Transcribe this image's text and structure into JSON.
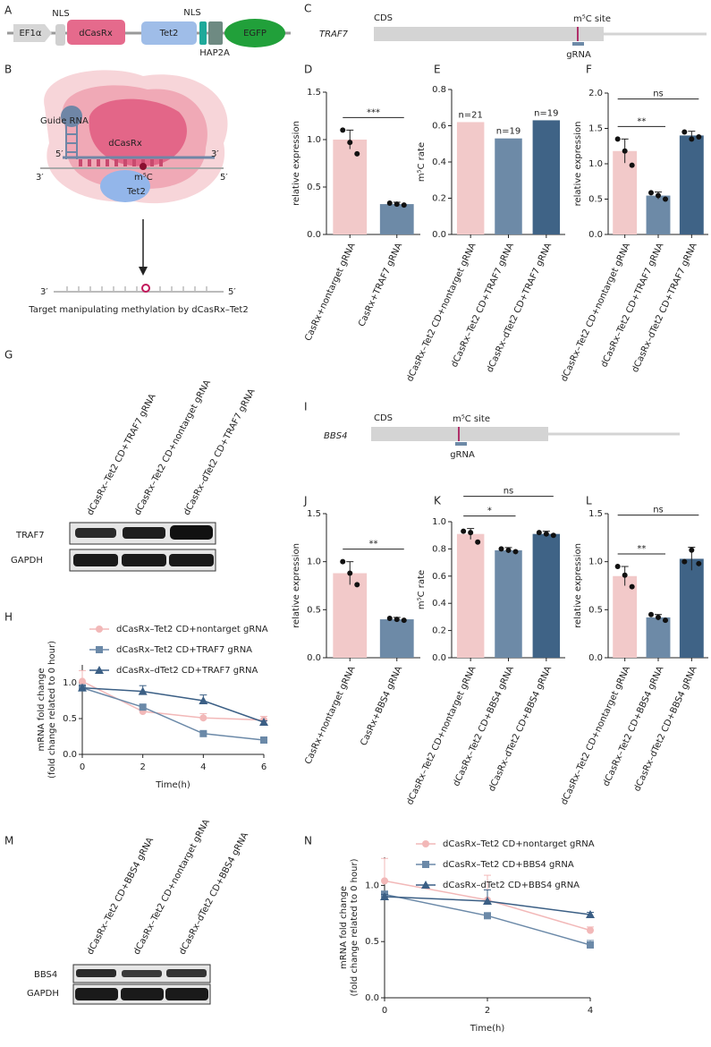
{
  "panel_labels": [
    "A",
    "B",
    "C",
    "D",
    "E",
    "F",
    "G",
    "H",
    "I",
    "J",
    "K",
    "L",
    "M",
    "N"
  ],
  "construct": {
    "promoter": "EF1α",
    "nls1": "NLS",
    "casrx": "dCasRx",
    "tet2": "Tet2",
    "nls2": "NLS",
    "hap2a": "HAP2A",
    "egfp": "EGFP"
  },
  "mechanism": {
    "guide_rna": "Guide RNA",
    "protein": "dCasRx",
    "top_left": "5′",
    "top_right": "3′",
    "bottom_left": "3′",
    "bottom_right": "5′",
    "mark": "m⁵C",
    "enzyme": "Tet2",
    "product_left": "3′",
    "product_right": "5′",
    "caption": "Target manipulating methylation by dCasRx–Tet2"
  },
  "traf7_map": {
    "gene": "TRAF7",
    "region": "CDS",
    "site": "m⁵C site",
    "guide": "gRNA"
  },
  "bbs4_map": {
    "gene": "BBS4",
    "region": "CDS",
    "site": "m⁵C site",
    "guide": "gRNA"
  },
  "traf7_blot": {
    "lanes": [
      "dCasRx–Tet2 CD+TRAF7 gRNA",
      "dCasRx–Tet2 CD+nontarget gRNA",
      "dCasRx–dTet2 CD+TRAF7 gRNA"
    ],
    "rows": [
      "TRAF7",
      "GAPDH"
    ]
  },
  "bbs4_blot": {
    "lanes": [
      "dCasRx–Tet2 CD+BBS4 gRNA",
      "dCasRx–Tet2 CD+nontarget gRNA",
      "dCasRx–dTet2 CD+BBS4 gRNA"
    ],
    "rows": [
      "BBS4",
      "GAPDH"
    ]
  },
  "chart_data": [
    {
      "type": "bar",
      "ylabel": "relative expression",
      "categories": [
        "CasRx+nontarget gRNA",
        "CasRx+TRAF7 gRNA"
      ],
      "values": [
        1.0,
        0.32
      ],
      "errors": [
        0.1,
        0.02
      ],
      "points": [
        [
          1.1,
          0.97,
          0.85
        ],
        [
          0.33,
          0.32,
          0.31
        ]
      ],
      "colors": [
        "#f2c9c9",
        "#6d8aa7"
      ],
      "ylim": [
        0,
        1.5
      ],
      "yticks": [
        {
          "value": 0,
          "label": "0.0"
        },
        0.5,
        {
          "value": 1,
          "label": "1.0"
        },
        1.5
      ],
      "significance": [
        {
          "label": "***",
          "from": 0,
          "to": 1
        }
      ]
    },
    {
      "type": "bar",
      "ylabel": "m⁵C rate",
      "categories": [
        "dCasRx–Tet2 CD+nontarget gRNA",
        "dCasRx–Tet2 CD+TRAF7 gRNA",
        "dCasRx–dTet2 CD+TRAF7 gRNA"
      ],
      "values": [
        0.62,
        0.53,
        0.63
      ],
      "bar_labels": [
        "n=21",
        "n=19",
        "n=19"
      ],
      "colors": [
        "#f2c9c9",
        "#6d8aa7",
        "#3f6386"
      ],
      "ylim": [
        0,
        0.8
      ],
      "yticks": [
        {
          "value": 0,
          "label": "0.0"
        },
        0.2,
        0.4,
        0.6,
        0.8
      ]
    },
    {
      "type": "bar",
      "ylabel": "relative expression",
      "categories": [
        "dCasRx–Tet2 CD+nontarget gRNA",
        "dCasRx–Tet2 CD+TRAF7 gRNA",
        "dCasRx–dTet2 CD+TRAF7 gRNA"
      ],
      "values": [
        1.18,
        0.55,
        1.4
      ],
      "errors": [
        0.17,
        0.05,
        0.06
      ],
      "points": [
        [
          1.35,
          1.18,
          0.98
        ],
        [
          0.59,
          0.55,
          0.5
        ],
        [
          1.45,
          1.35,
          1.38
        ]
      ],
      "colors": [
        "#f2c9c9",
        "#6d8aa7",
        "#3f6386"
      ],
      "ylim": [
        0,
        2
      ],
      "yticks": [
        {
          "value": 0,
          "label": "0.0"
        },
        0.5,
        {
          "value": 1,
          "label": "1.0"
        },
        1.5,
        {
          "value": 2,
          "label": "2.0"
        }
      ],
      "significance": [
        {
          "label": "**",
          "from": 0,
          "to": 1
        },
        {
          "label": "ns",
          "from": 0,
          "to": 2
        }
      ]
    },
    {
      "type": "line",
      "xlabel": "Time(h)",
      "ylabel": [
        "mRNA fold change",
        "(fold change related to 0 hour)"
      ],
      "x": [
        0,
        2,
        4,
        6
      ],
      "xlim": [
        0,
        6
      ],
      "xticks": [
        0,
        2,
        4,
        6
      ],
      "ylim": [
        0,
        1.25
      ],
      "yticks": [
        {
          "value": 0,
          "label": "0.0"
        },
        0.5,
        {
          "value": 1,
          "label": "1.0"
        }
      ],
      "legend": "above",
      "series": [
        {
          "name": "dCasRx–Tet2 CD+nontarget gRNA",
          "color": "#f2b8b8",
          "marker": "circle",
          "values": [
            1.02,
            0.6,
            0.51,
            0.48
          ],
          "errors": [
            0.15,
            0.02,
            0.06,
            0.05
          ]
        },
        {
          "name": "dCasRx–Tet2 CD+TRAF7 gRNA",
          "color": "#6b89a8",
          "marker": "square",
          "values": [
            0.93,
            0.66,
            0.29,
            0.2
          ],
          "errors": [
            0.03,
            0.03,
            0.02,
            0.02
          ]
        },
        {
          "name": "dCasRx–dTet2 CD+TRAF7 gRNA",
          "color": "#3b5f85",
          "marker": "triangle",
          "values": [
            0.93,
            0.88,
            0.75,
            0.45
          ],
          "errors": [
            0.03,
            0.08,
            0.08,
            0.02
          ]
        }
      ]
    },
    {
      "type": "bar",
      "ylabel": "relative expression",
      "categories": [
        "CasRx+nontarget gRNA",
        "CasRx+BBS4 gRNA"
      ],
      "values": [
        0.88,
        0.4
      ],
      "errors": [
        0.12,
        0.02
      ],
      "points": [
        [
          1.0,
          0.88,
          0.76
        ],
        [
          0.41,
          0.4,
          0.39
        ]
      ],
      "colors": [
        "#f2c9c9",
        "#6d8aa7"
      ],
      "ylim": [
        0,
        1.5
      ],
      "yticks": [
        {
          "value": 0,
          "label": "0.0"
        },
        0.5,
        {
          "value": 1,
          "label": "1.0"
        },
        1.5
      ],
      "significance": [
        {
          "label": "**",
          "from": 0,
          "to": 1
        }
      ]
    },
    {
      "type": "bar",
      "ylabel": "m⁵C rate",
      "categories": [
        "dCasRx–Tet2 CD+nontarget gRNA",
        "dCasRx–Tet2 CD+BBS4 gRNA",
        "dCasRx–dTet2 CD+BBS4 gRNA"
      ],
      "values": [
        0.91,
        0.79,
        0.91
      ],
      "errors": [
        0.04,
        0.02,
        0.02
      ],
      "points": [
        [
          0.93,
          0.92,
          0.85
        ],
        [
          0.8,
          0.79,
          0.78
        ],
        [
          0.92,
          0.91,
          0.9
        ]
      ],
      "colors": [
        "#f2c9c9",
        "#6d8aa7",
        "#3f6386"
      ],
      "ylim": [
        0,
        1
      ],
      "yticks": [
        {
          "value": 0,
          "label": "0.0"
        },
        0.2,
        0.4,
        0.6,
        0.8,
        {
          "value": 1,
          "label": "1.0"
        }
      ],
      "significance": [
        {
          "label": "*",
          "from": 0,
          "to": 1
        },
        {
          "label": "ns",
          "from": 0,
          "to": 2
        }
      ]
    },
    {
      "type": "bar",
      "ylabel": "relative expression",
      "categories": [
        "dCasRx–Tet2 CD+nontarget gRNA",
        "dCasRx–Tet2 CD+BBS4 gRNA",
        "dCasRx–dTet2 CD+BBS4 gRNA"
      ],
      "values": [
        0.85,
        0.42,
        1.03
      ],
      "errors": [
        0.1,
        0.03,
        0.12
      ],
      "points": [
        [
          0.95,
          0.86,
          0.74
        ],
        [
          0.45,
          0.42,
          0.39
        ],
        [
          1.0,
          1.12,
          0.98
        ]
      ],
      "colors": [
        "#f2c9c9",
        "#6d8aa7",
        "#3f6386"
      ],
      "ylim": [
        0,
        1.5
      ],
      "yticks": [
        {
          "value": 0,
          "label": "0.0"
        },
        0.5,
        {
          "value": 1,
          "label": "1.0"
        },
        1.5
      ],
      "significance": [
        {
          "label": "**",
          "from": 0,
          "to": 1
        },
        {
          "label": "ns",
          "from": 0,
          "to": 2
        }
      ]
    },
    {
      "type": "line",
      "xlabel": "Time(h)",
      "ylabel": [
        "mRNA fold change",
        "(fold change related to 0 hour)"
      ],
      "x": [
        0,
        2,
        4
      ],
      "xlim": [
        0,
        4
      ],
      "xticks": [
        0,
        2,
        4
      ],
      "ylim": [
        0,
        1.25
      ],
      "yticks": [
        {
          "value": 0,
          "label": "0.0"
        },
        0.5,
        {
          "value": 1,
          "label": "1.0"
        }
      ],
      "legend": "upper right",
      "series": [
        {
          "name": "dCasRx–Tet2 CD+nontarget gRNA",
          "color": "#f2b8b8",
          "marker": "circle",
          "values": [
            1.04,
            0.87,
            0.6
          ],
          "errors": [
            0.2,
            0.22,
            0.03
          ]
        },
        {
          "name": "dCasRx–Tet2 CD+BBS4 gRNA",
          "color": "#6b89a8",
          "marker": "square",
          "values": [
            0.92,
            0.73,
            0.47
          ],
          "errors": [
            0.03,
            0.02,
            0.04
          ]
        },
        {
          "name": "dCasRx–dTet2 CD+BBS4 gRNA",
          "color": "#3b5f85",
          "marker": "triangle",
          "values": [
            0.9,
            0.86,
            0.74
          ],
          "errors": [
            0.02,
            0.1,
            0.02
          ]
        }
      ]
    }
  ]
}
